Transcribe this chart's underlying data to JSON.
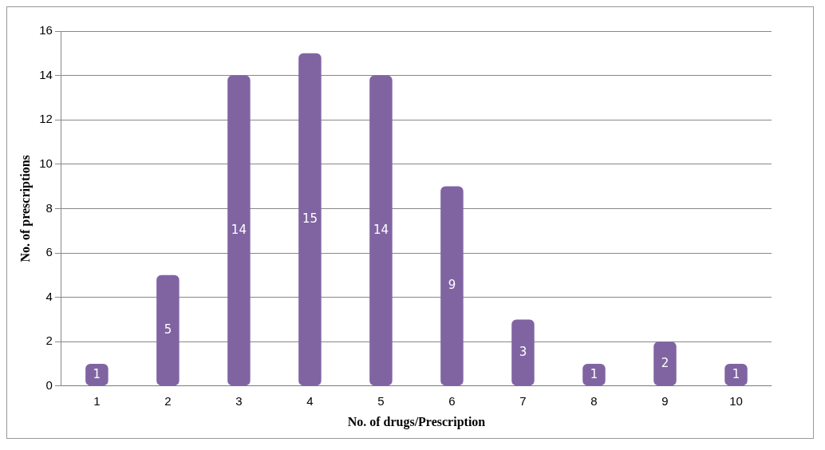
{
  "chart_data": {
    "type": "bar",
    "xlabel": "No. of drugs/Prescription",
    "ylabel": "No. of prescriptions",
    "categories": [
      "1",
      "2",
      "3",
      "4",
      "5",
      "6",
      "7",
      "8",
      "9",
      "10"
    ],
    "values": [
      1,
      5,
      14,
      15,
      14,
      9,
      3,
      1,
      2,
      1
    ],
    "color": "#8064a2",
    "ylim": [
      0,
      16
    ],
    "yticks": [
      0,
      2,
      4,
      6,
      8,
      10,
      12,
      14,
      16
    ],
    "grid": "y",
    "data_labels": true,
    "legend": false
  }
}
